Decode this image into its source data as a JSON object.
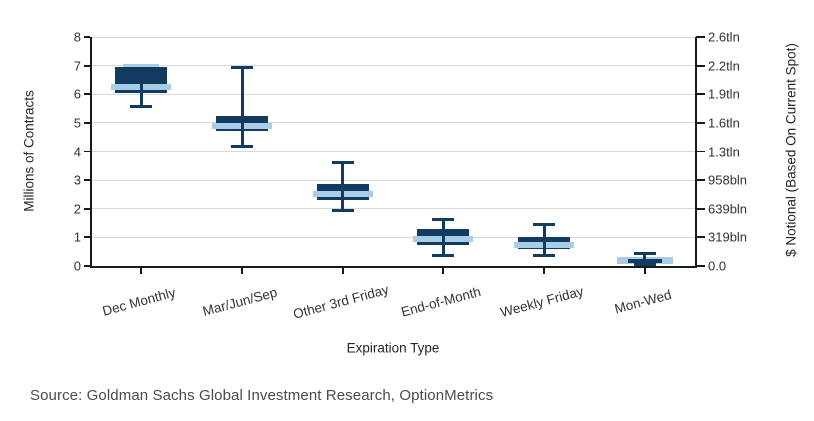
{
  "figure": {
    "source_note": "Source: Goldman Sachs Global Investment Research, OptionMetrics"
  },
  "colors": {
    "box_dark_navy": "#133A60",
    "box_light_blue": "#A9CCE9",
    "gridline": "#D8D8D8",
    "axis_spine": "#1A1A1A",
    "tick_label_text": "#333333",
    "source_text": "#4B4B4B",
    "background": "#FFFFFF"
  },
  "chart_data": {
    "type": "box",
    "title": "",
    "xlabel": "Expiration Type",
    "ylabel_left": "Millions of Contracts",
    "ylabel_right": "$ Notional (Based On Current Spot)",
    "ylim": [
      0,
      8
    ],
    "grid": "horizontal",
    "legend": "none",
    "y_left_tick_labels": [
      "0",
      "1",
      "2",
      "3",
      "4",
      "5",
      "6",
      "7",
      "8"
    ],
    "y_right_tick_labels": [
      "0.0",
      "319bln",
      "639bln",
      "958bln",
      "1.3tln",
      "1.6tln",
      "1.9tln",
      "2.2tln",
      "2.6tln"
    ],
    "categories": [
      "Dec Monthly",
      "Mar/Jun/Sep",
      "Other 3rd Friday",
      "End-of-Month",
      "Weekly Friday",
      "Mon-Wed"
    ],
    "boxes": [
      {
        "category": "Dec Monthly",
        "low": 5.6,
        "q1": 6.05,
        "median": 6.27,
        "q3": 6.95,
        "high": 7.0,
        "style": "dark-box-light-median-light-top-cap"
      },
      {
        "category": "Mar/Jun/Sep",
        "low": 4.2,
        "q1": 4.7,
        "median": 4.88,
        "q3": 5.25,
        "high": 6.95,
        "style": "dark-box-light-median"
      },
      {
        "category": "Other 3rd Friday",
        "low": 1.95,
        "q1": 2.3,
        "median": 2.52,
        "q3": 2.85,
        "high": 3.65,
        "style": "dark-box-light-median"
      },
      {
        "category": "End-of-Month",
        "low": 0.4,
        "q1": 0.72,
        "median": 0.95,
        "q3": 1.3,
        "high": 1.65,
        "style": "dark-box-light-median"
      },
      {
        "category": "Weekly Friday",
        "low": 0.4,
        "q1": 0.6,
        "median": 0.73,
        "q3": 1.0,
        "high": 1.45,
        "style": "dark-box-light-median"
      },
      {
        "category": "Mon-Wed",
        "low": 0.02,
        "q1": 0.06,
        "median": 0.18,
        "q3": 0.33,
        "high": 0.45,
        "style": "light-box-dark-median"
      }
    ]
  }
}
